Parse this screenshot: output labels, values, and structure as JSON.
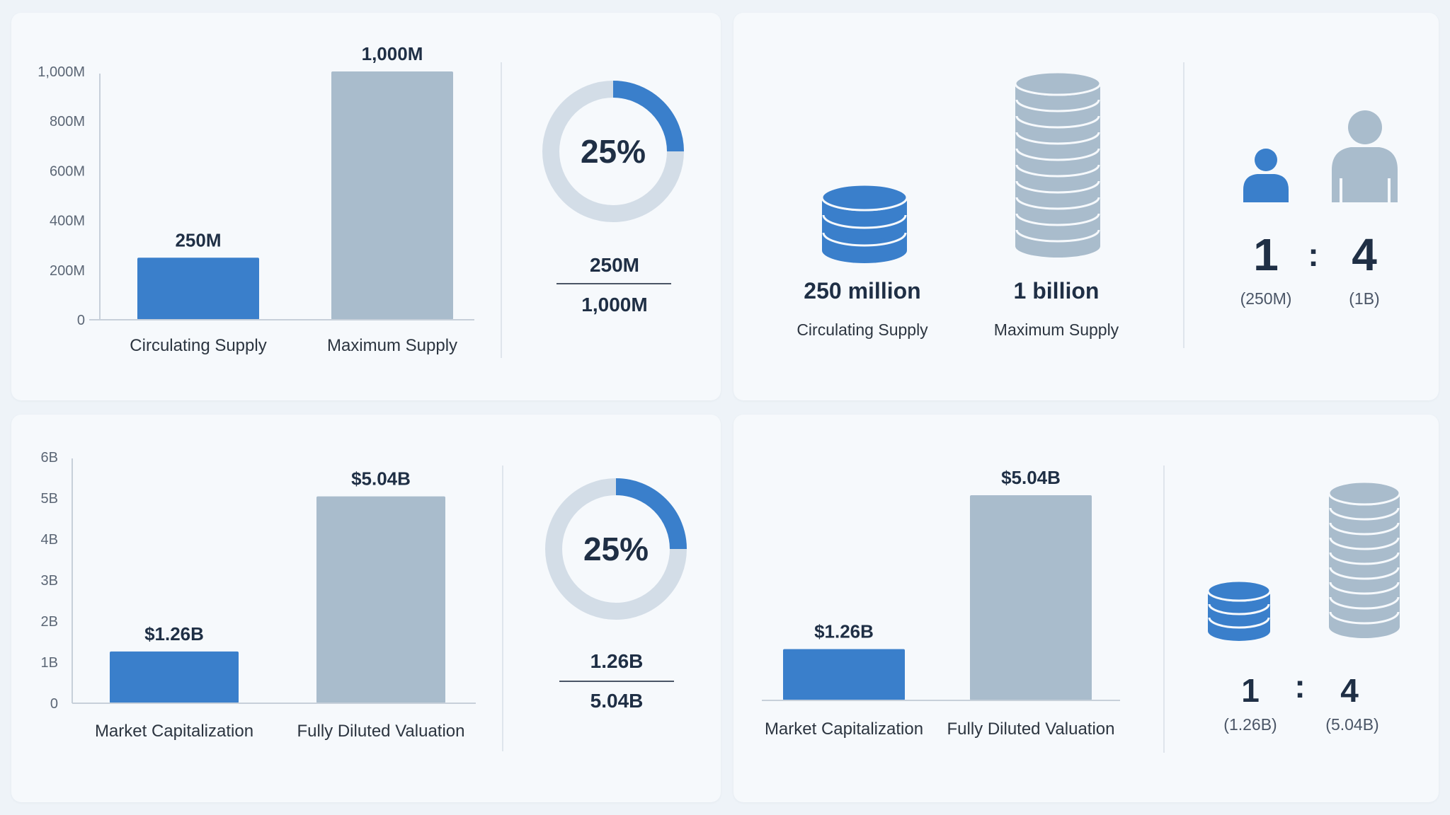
{
  "colors": {
    "accent": "#3a7fcb",
    "muted": "#a9bccc",
    "ring": "#d3dde7",
    "text": "#1f2f45"
  },
  "chart_data": [
    {
      "type": "bar",
      "categories": [
        "Circulating Supply",
        "Maximum Supply"
      ],
      "values": [
        250,
        1000
      ],
      "value_labels": [
        "250M",
        "1,000M"
      ],
      "yticks": [
        "0",
        "200M",
        "400M",
        "600M",
        "800M",
        "1,000M"
      ],
      "ytick_values": [
        0,
        200,
        400,
        600,
        800,
        1000
      ],
      "ylim": [
        0,
        1000
      ],
      "ratio": {
        "percent_label": "25%",
        "numerator": "250M",
        "denominator": "1,000M",
        "fraction": 0.25
      }
    },
    {
      "type": "bar",
      "categories": [
        "Market Capitalization",
        "Fully Diluted Valuation"
      ],
      "values": [
        1.26,
        5.04
      ],
      "value_labels": [
        "$1.26B",
        "$5.04B"
      ],
      "yticks": [
        "0",
        "1B",
        "2B",
        "3B",
        "4B",
        "5B",
        "6B"
      ],
      "ytick_values": [
        0,
        1,
        2,
        3,
        4,
        5,
        6
      ],
      "ylim": [
        0,
        6
      ],
      "ratio": {
        "percent_label": "25%",
        "numerator": "1.26B",
        "denominator": "5.04B",
        "fraction": 0.25
      }
    },
    {
      "type": "bar",
      "categories": [
        "Market Capitalization",
        "Fully Diluted Valuation"
      ],
      "values": [
        1.26,
        5.04
      ],
      "value_labels": [
        "$1.26B",
        "$5.04B"
      ],
      "ylim": [
        0,
        5.04
      ]
    }
  ],
  "supply_icons": {
    "circulating": {
      "value": "250 million",
      "label": "Circulating Supply"
    },
    "maximum": {
      "value": "1 billion",
      "label": "Maximum Supply"
    }
  },
  "supply_ratio": {
    "left": "1",
    "colon": ":",
    "right": "4",
    "left_sub": "(250M)",
    "right_sub": "(1B)"
  },
  "valuation_ratio": {
    "left": "1",
    "colon": ":",
    "right": "4",
    "left_sub": "(1.26B)",
    "right_sub": "(5.04B)"
  },
  "icons": [
    "coin-stack-icon",
    "person-icon"
  ]
}
